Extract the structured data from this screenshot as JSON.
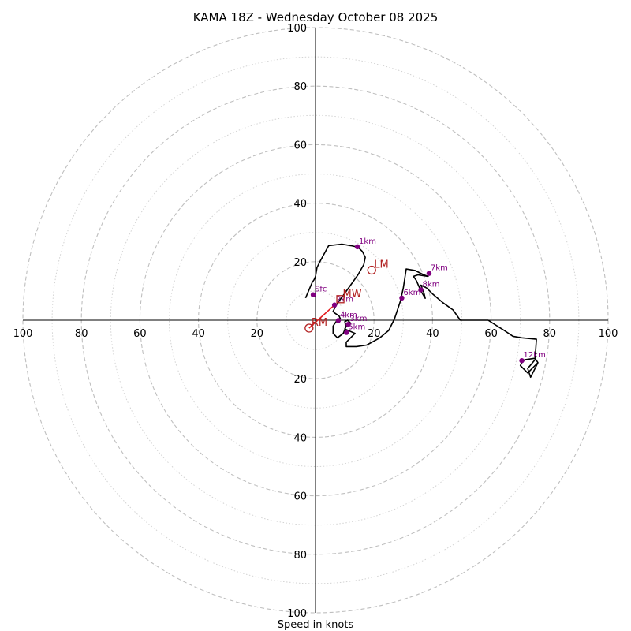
{
  "chart_data": {
    "type": "scatter",
    "title": "KAMA 18Z - Wednesday October 08 2025",
    "xlabel": "Speed in knots",
    "ylabel": "",
    "xlim": [
      -100,
      100
    ],
    "ylim": [
      -100,
      100
    ],
    "rings_major": [
      20,
      40,
      60,
      80,
      100
    ],
    "rings_minor": [
      10,
      30,
      50,
      70,
      90
    ],
    "x_ticks": [
      {
        "value": -100,
        "label": "100"
      },
      {
        "value": -80,
        "label": "80"
      },
      {
        "value": -60,
        "label": "60"
      },
      {
        "value": -40,
        "label": "40"
      },
      {
        "value": -20,
        "label": "20"
      },
      {
        "value": 20,
        "label": "20"
      },
      {
        "value": 40,
        "label": "40"
      },
      {
        "value": 60,
        "label": "60"
      },
      {
        "value": 80,
        "label": "80"
      },
      {
        "value": 100,
        "label": "100"
      }
    ],
    "y_ticks": [
      {
        "value": 100,
        "label": "100"
      },
      {
        "value": 80,
        "label": "80"
      },
      {
        "value": 60,
        "label": "60"
      },
      {
        "value": 40,
        "label": "40"
      },
      {
        "value": 20,
        "label": "20"
      },
      {
        "value": -20,
        "label": "20"
      },
      {
        "value": -40,
        "label": "40"
      },
      {
        "value": -60,
        "label": "60"
      },
      {
        "value": -80,
        "label": "80"
      },
      {
        "value": -100,
        "label": "100"
      }
    ],
    "hodograph_trace": [
      [
        -3.4,
        7.6
      ],
      [
        -1.1,
        13.0
      ],
      [
        -0.5,
        13.8
      ],
      [
        0.0,
        15.0
      ],
      [
        0.5,
        18.0
      ],
      [
        1.5,
        20.0
      ],
      [
        4.5,
        25.5
      ],
      [
        9.0,
        26.0
      ],
      [
        12.0,
        25.5
      ],
      [
        14.5,
        25.0
      ],
      [
        16.0,
        23.5
      ],
      [
        17.0,
        21.5
      ],
      [
        16.5,
        19.0
      ],
      [
        14.5,
        15.5
      ],
      [
        12.0,
        12.0
      ],
      [
        9.5,
        8.5
      ],
      [
        8.0,
        6.5
      ],
      [
        7.0,
        5.0
      ],
      [
        6.5,
        4.0
      ],
      [
        6.0,
        3.0
      ],
      [
        6.5,
        2.5
      ],
      [
        8.0,
        1.5
      ],
      [
        8.5,
        0.5
      ],
      [
        8.0,
        0.0
      ],
      [
        7.0,
        -0.5
      ],
      [
        6.0,
        -2.0
      ],
      [
        6.0,
        -4.5
      ],
      [
        7.5,
        -6.0
      ],
      [
        9.5,
        -4.5
      ],
      [
        10.5,
        -2.0
      ],
      [
        10.0,
        -0.5
      ],
      [
        11.0,
        0.0
      ],
      [
        12.0,
        -1.0
      ],
      [
        11.5,
        -1.5
      ],
      [
        10.5,
        -2.0
      ],
      [
        10.0,
        -3.0
      ],
      [
        13.5,
        -4.5
      ],
      [
        10.5,
        -7.5
      ],
      [
        10.5,
        -9.0
      ],
      [
        14.0,
        -9.0
      ],
      [
        17.5,
        -8.5
      ],
      [
        22.0,
        -6.0
      ],
      [
        25.0,
        -3.5
      ],
      [
        27.0,
        0.5
      ],
      [
        28.0,
        3.5
      ],
      [
        29.0,
        6.5
      ],
      [
        30.0,
        11.0
      ],
      [
        31.0,
        17.5
      ],
      [
        34.0,
        17.0
      ],
      [
        37.0,
        15.5
      ],
      [
        38.5,
        15.0
      ],
      [
        35.0,
        15.5
      ],
      [
        33.5,
        15.0
      ],
      [
        34.5,
        13.5
      ],
      [
        36.0,
        10.0
      ],
      [
        37.5,
        7.5
      ],
      [
        37.0,
        9.5
      ],
      [
        36.0,
        12.0
      ],
      [
        38.0,
        11.0
      ],
      [
        40.0,
        9.0
      ],
      [
        43.5,
        6.0
      ],
      [
        47.0,
        3.5
      ],
      [
        49.5,
        0.0
      ],
      [
        59.0,
        0.0
      ],
      [
        64.5,
        -3.5
      ],
      [
        67.5,
        -5.5
      ],
      [
        70.5,
        -6.0
      ],
      [
        75.5,
        -6.5
      ],
      [
        75.0,
        -13.5
      ],
      [
        72.5,
        -16.5
      ],
      [
        73.5,
        -19.5
      ],
      [
        76.0,
        -14.5
      ],
      [
        75.0,
        -13.0
      ],
      [
        71.5,
        -13.5
      ],
      [
        70.5,
        -14.5
      ],
      [
        70.0,
        -15.5
      ],
      [
        72.5,
        -18.0
      ],
      [
        76.0,
        -14.5
      ]
    ],
    "height_markers": [
      {
        "label": "Sfc",
        "u": -0.8,
        "v": 8.7
      },
      {
        "label": "1km",
        "u": 14.3,
        "v": 25.1
      },
      {
        "label": "2km",
        "u": 6.5,
        "v": 5.2
      },
      {
        "label": "3km",
        "u": 11.2,
        "v": -1.4
      },
      {
        "label": "4km",
        "u": 7.8,
        "v": -0.1
      },
      {
        "label": "5km",
        "u": 10.6,
        "v": -4.2
      },
      {
        "label": "6km",
        "u": 29.5,
        "v": 7.6
      },
      {
        "label": "7km",
        "u": 38.8,
        "v": 16.0
      },
      {
        "label": "8km",
        "u": 36.0,
        "v": 10.4
      },
      {
        "label": "12km",
        "u": 70.5,
        "v": -13.8
      }
    ],
    "storm_motion": {
      "bunkers_right": {
        "label": "RM",
        "u": -2.2,
        "v": -2.7
      },
      "bunkers_left": {
        "label": "LM",
        "u": 19.2,
        "v": 17.1
      },
      "mean_wind": {
        "label": "MW",
        "u": 8.5,
        "v": 7.2
      },
      "shear_line": {
        "from": [
          6.5,
          5.2
        ],
        "to": [
          -2.2,
          -2.7
        ]
      }
    },
    "colors": {
      "trace": "#000000",
      "height_markers": "#800080",
      "storm_motion": "#b22222",
      "shear_line": "#e41a1c",
      "rings": "#bfbfbf"
    }
  }
}
